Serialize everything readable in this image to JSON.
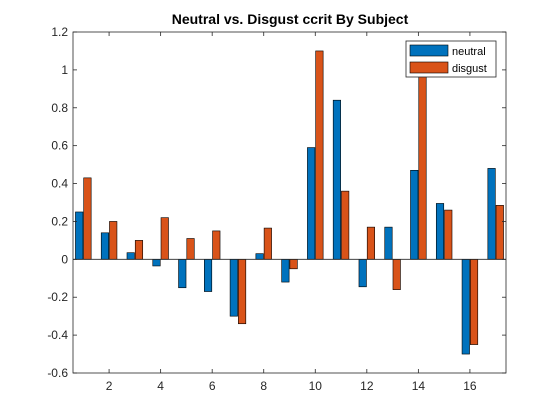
{
  "chart_data": {
    "type": "bar",
    "title": "Neutral vs. Disgust ccrit By Subject",
    "xlabel": "",
    "ylabel": "",
    "categories": [
      1,
      2,
      3,
      4,
      5,
      6,
      7,
      8,
      9,
      10,
      11,
      12,
      13,
      14,
      15,
      16,
      17
    ],
    "xlim": [
      0.6,
      17.4
    ],
    "ylim": [
      -0.6,
      1.2
    ],
    "xticks": [
      2,
      4,
      6,
      8,
      10,
      12,
      14,
      16
    ],
    "yticks": [
      -0.6,
      -0.4,
      -0.2,
      0,
      0.2,
      0.4,
      0.6,
      0.8,
      1,
      1.2
    ],
    "ytick_labels": [
      "-0.6",
      "-0.4",
      "-0.2",
      "0",
      "0.2",
      "0.4",
      "0.6",
      "0.8",
      "1",
      "1.2"
    ],
    "grid": false,
    "legend_position": "top-right",
    "series": [
      {
        "name": "neutral",
        "color": "#0072BD",
        "values": [
          0.25,
          0.14,
          0.035,
          -0.035,
          -0.15,
          -0.17,
          -0.3,
          0.03,
          -0.12,
          0.59,
          0.84,
          -0.145,
          0.17,
          0.47,
          0.295,
          -0.5,
          0.48
        ]
      },
      {
        "name": "disgust",
        "color": "#D95319",
        "values": [
          0.43,
          0.2,
          0.1,
          0.22,
          0.11,
          0.15,
          -0.34,
          0.165,
          -0.05,
          1.1,
          0.36,
          0.17,
          -0.16,
          1.15,
          0.26,
          -0.45,
          0.285
        ]
      }
    ]
  }
}
